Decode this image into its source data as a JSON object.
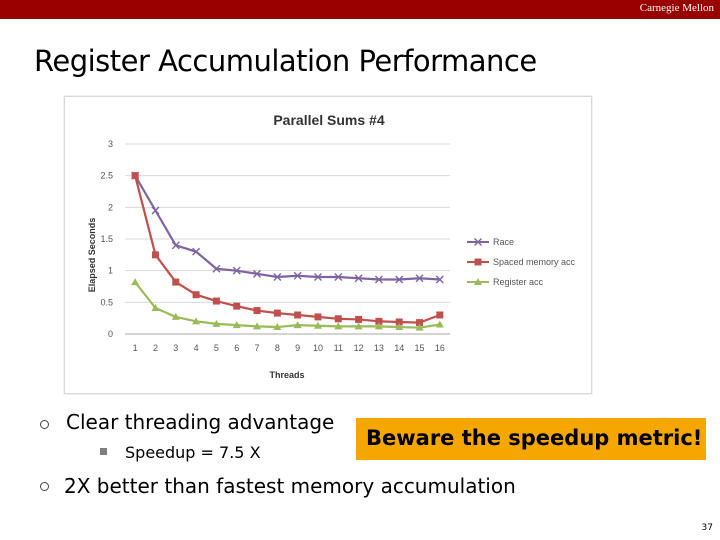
{
  "header": {
    "brand": "Carnegie Mellon"
  },
  "slide": {
    "title": "Register Accumulation Performance",
    "page_number": "37"
  },
  "bullets": [
    {
      "text": "Clear threading advantage",
      "sub": "Speedup = 7.5 X"
    },
    {
      "text": "2X better than fastest memory accumulation"
    }
  ],
  "callout": {
    "text": "Beware the speedup metric!",
    "color": "#f5a700"
  },
  "chart_data": {
    "type": "line",
    "title": "Parallel Sums #4",
    "xlabel": "Threads",
    "ylabel": "Elapsed Seconds",
    "x": [
      1,
      2,
      3,
      4,
      5,
      6,
      7,
      8,
      9,
      10,
      11,
      12,
      13,
      14,
      15,
      16
    ],
    "ylim": [
      0,
      3
    ],
    "yticks": [
      0,
      0.5,
      1,
      1.5,
      2,
      2.5,
      3
    ],
    "grid": true,
    "legend": "right",
    "series": [
      {
        "name": "Race",
        "color": "#8064a2",
        "marker": "x",
        "values": [
          2.5,
          1.95,
          1.4,
          1.3,
          1.03,
          1.0,
          0.95,
          0.9,
          0.92,
          0.9,
          0.9,
          0.88,
          0.86,
          0.86,
          0.88,
          0.86
        ]
      },
      {
        "name": "Spaced memory acc",
        "color": "#c0504d",
        "marker": "square",
        "values": [
          2.5,
          1.25,
          0.82,
          0.62,
          0.52,
          0.44,
          0.37,
          0.33,
          0.3,
          0.27,
          0.24,
          0.23,
          0.2,
          0.19,
          0.18,
          0.3
        ]
      },
      {
        "name": "Register acc",
        "color": "#9bbb59",
        "marker": "triangle",
        "values": [
          0.82,
          0.41,
          0.27,
          0.2,
          0.16,
          0.14,
          0.12,
          0.11,
          0.14,
          0.13,
          0.12,
          0.12,
          0.12,
          0.11,
          0.1,
          0.15
        ]
      }
    ]
  }
}
